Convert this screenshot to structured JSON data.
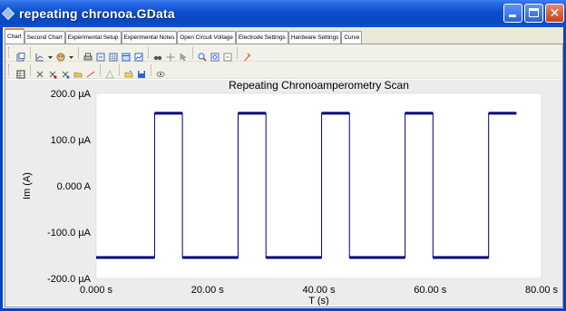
{
  "window": {
    "title": "repeating chronoa.GData"
  },
  "tabs": [
    {
      "label": "Chart"
    },
    {
      "label": "Second Chart"
    },
    {
      "label": "Experimental Setup"
    },
    {
      "label": "Experimental Notes"
    },
    {
      "label": "Open Circuit Voltage"
    },
    {
      "label": "Electrode Settings"
    },
    {
      "label": "Hardware Settings"
    },
    {
      "label": "Curve"
    }
  ],
  "colors": {
    "series": "#00007f",
    "plot_bg": "#ffffff",
    "frame_bg": "#ececec"
  },
  "chart_data": {
    "type": "line",
    "title": "Repeating Chronoamperometry Scan",
    "xlabel": "T (s)",
    "ylabel": "Im (A)",
    "xlim": [
      0,
      80
    ],
    "ylim": [
      -200,
      200
    ],
    "y_unit": "µA",
    "x_ticks": [
      {
        "value": 0,
        "label": "0.000 s"
      },
      {
        "value": 20,
        "label": "20.00 s"
      },
      {
        "value": 40,
        "label": "40.00 s"
      },
      {
        "value": 60,
        "label": "60.00 s"
      },
      {
        "value": 80,
        "label": "80.00 s"
      }
    ],
    "y_ticks": [
      {
        "value": 200,
        "label": "200.0 µA"
      },
      {
        "value": 100,
        "label": "100.0 µA"
      },
      {
        "value": 0,
        "label": "0.000 A"
      },
      {
        "value": -100,
        "label": "-100.0 µA"
      },
      {
        "value": -200,
        "label": "-200.0 µA"
      }
    ],
    "series": [
      {
        "x": [
          0,
          10.5,
          10.5,
          15.5,
          15.5,
          25.5,
          25.5,
          30.5,
          30.5,
          40.5,
          40.5,
          45.5,
          45.5,
          55.5,
          55.5,
          60.5,
          60.5,
          70.5,
          70.5,
          75.5
        ],
        "y": [
          -155,
          -155,
          157,
          157,
          -155,
          -155,
          157,
          157,
          -155,
          -155,
          157,
          157,
          -155,
          -155,
          157,
          157,
          -155,
          -155,
          157,
          157
        ]
      }
    ]
  }
}
